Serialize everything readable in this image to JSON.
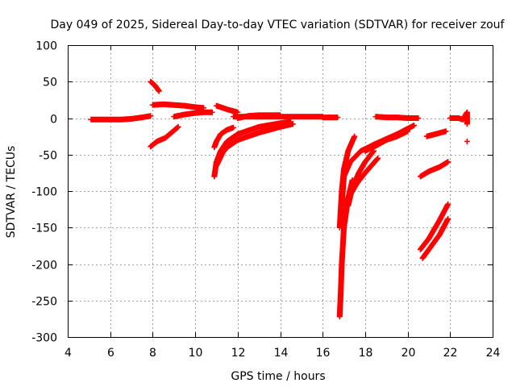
{
  "chart_data": {
    "type": "scatter",
    "title": "Day 049 of 2025, Sidereal Day-to-day VTEC variation (SDTVAR) for receiver zouf",
    "xlabel": "GPS time / hours",
    "ylabel": "SDTVAR / TECUs",
    "xlim": [
      4,
      24
    ],
    "ylim": [
      -300,
      100
    ],
    "xticks": [
      4,
      6,
      8,
      10,
      12,
      14,
      16,
      18,
      20,
      22,
      24
    ],
    "yticks": [
      -300,
      -250,
      -200,
      -150,
      -100,
      -50,
      0,
      50,
      100
    ],
    "grid": true,
    "marker": "plus",
    "color": "#ff0000",
    "series": [
      {
        "x": [
          5.1,
          5.5,
          6.0,
          6.5,
          7.0,
          7.5,
          7.9
        ],
        "y": [
          -2,
          -2,
          -2,
          -2,
          -1,
          1,
          3
        ]
      },
      {
        "x": [
          7.9,
          8.2,
          8.6,
          9.2
        ],
        "y": [
          -39,
          -32,
          -27,
          -12
        ]
      },
      {
        "x": [
          7.9,
          8.1,
          8.3
        ],
        "y": [
          50,
          45,
          37
        ]
      },
      {
        "x": [
          8.0,
          8.5,
          9.0,
          9.5,
          10.0,
          10.4
        ],
        "y": [
          18,
          19,
          18,
          17,
          15,
          14
        ]
      },
      {
        "x": [
          9.0,
          9.5,
          10.0,
          10.4,
          10.8
        ],
        "y": [
          2,
          5,
          7,
          8,
          8
        ]
      },
      {
        "x": [
          10.9,
          11.0,
          11.2,
          11.5,
          11.8
        ],
        "y": [
          -40,
          -32,
          -22,
          -16,
          -13
        ]
      },
      {
        "x": [
          10.9,
          11.0,
          11.2,
          11.5,
          12.0,
          13.0,
          14.0,
          14.5
        ],
        "y": [
          -80,
          -60,
          -45,
          -32,
          -22,
          -12,
          -7,
          -5
        ]
      },
      {
        "x": [
          11.0,
          11.3,
          11.5,
          12.0,
          13.0,
          14.0,
          14.6
        ],
        "y": [
          -65,
          -47,
          -40,
          -30,
          -20,
          -12,
          -8
        ]
      },
      {
        "x": [
          11.0,
          11.5,
          12.0
        ],
        "y": [
          17,
          12,
          8
        ]
      },
      {
        "x": [
          11.8,
          12.5,
          13.5,
          14.5,
          15.5,
          16.0
        ],
        "y": [
          2,
          2,
          2,
          2,
          2,
          2
        ]
      },
      {
        "x": [
          12.0,
          12.5,
          13.0,
          14.0
        ],
        "y": [
          0,
          3,
          4,
          4
        ]
      },
      {
        "x": [
          16.0,
          16.7
        ],
        "y": [
          1,
          1
        ]
      },
      {
        "x": [
          16.8,
          16.85,
          16.9,
          17.0,
          17.2,
          17.4
        ],
        "y": [
          -272,
          -240,
          -200,
          -150,
          -110,
          -85
        ]
      },
      {
        "x": [
          16.8,
          16.9,
          17.0,
          17.2,
          17.5
        ],
        "y": [
          -150,
          -100,
          -70,
          -45,
          -25
        ]
      },
      {
        "x": [
          16.9,
          17.0,
          17.3,
          17.8,
          18.5,
          19.5,
          20.3
        ],
        "y": [
          -120,
          -80,
          -60,
          -45,
          -35,
          -22,
          -10
        ]
      },
      {
        "x": [
          17.0,
          17.2,
          17.6,
          18.0,
          18.6
        ],
        "y": [
          -140,
          -110,
          -90,
          -75,
          -55
        ]
      },
      {
        "x": [
          17.2,
          17.4,
          17.7,
          18.0,
          18.4
        ],
        "y": [
          -120,
          -95,
          -75,
          -60,
          -45
        ]
      },
      {
        "x": [
          18.0,
          18.5,
          19.0,
          19.5,
          20.0
        ],
        "y": [
          -45,
          -38,
          -30,
          -25,
          -18
        ]
      },
      {
        "x": [
          18.5,
          19.0,
          19.5,
          20.0,
          20.5
        ],
        "y": [
          2,
          1,
          1,
          0,
          0
        ]
      },
      {
        "x": [
          20.6,
          21.0,
          21.5,
          21.9
        ],
        "y": [
          -180,
          -165,
          -140,
          -118
        ]
      },
      {
        "x": [
          20.7,
          21.0,
          21.5,
          21.9
        ],
        "y": [
          -192,
          -180,
          -160,
          -138
        ]
      },
      {
        "x": [
          20.6,
          21.0,
          21.5,
          21.9
        ],
        "y": [
          -80,
          -73,
          -67,
          -60
        ]
      },
      {
        "x": [
          20.9,
          21.3,
          21.8
        ],
        "y": [
          -25,
          -22,
          -18
        ]
      },
      {
        "x": [
          22.0,
          22.4,
          22.6
        ],
        "y": [
          0,
          0,
          -2
        ]
      },
      {
        "x": [
          22.6,
          22.8,
          22.8
        ],
        "y": [
          -2,
          8,
          -8
        ]
      },
      {
        "x": [
          22.8
        ],
        "y": [
          -32
        ]
      }
    ]
  }
}
